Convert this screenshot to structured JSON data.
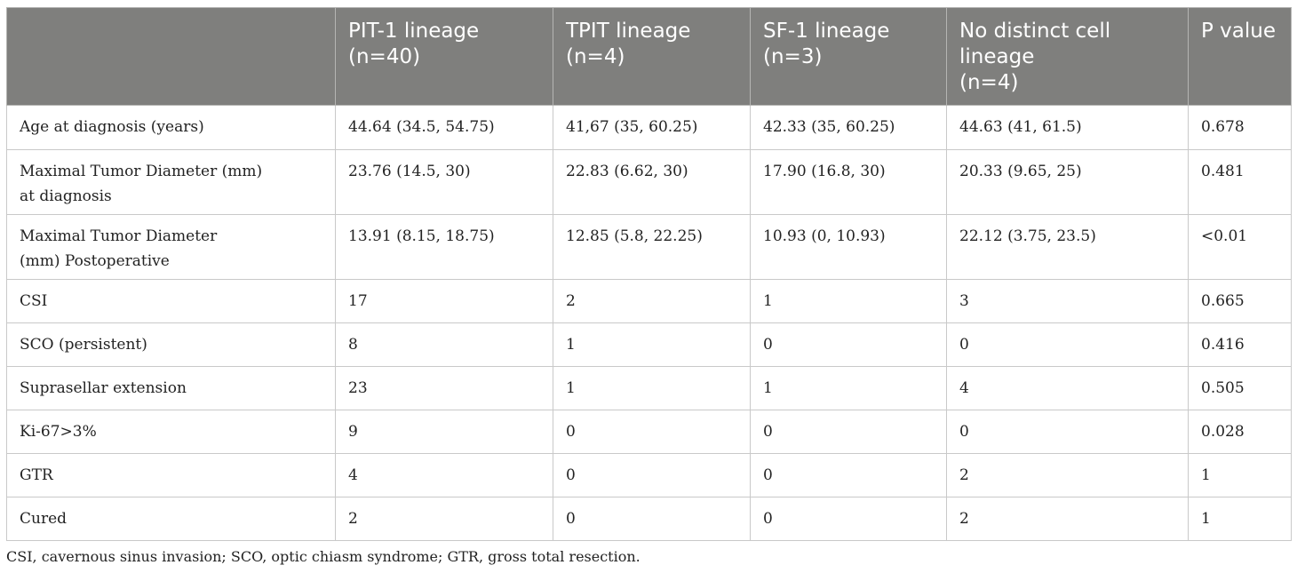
{
  "table": {
    "headers": [
      {
        "line1": "",
        "line2": "",
        "line3": ""
      },
      {
        "line1": "PIT-1 lineage",
        "line2": "(n=40)",
        "line3": ""
      },
      {
        "line1": "TPIT lineage",
        "line2": "(n=4)",
        "line3": ""
      },
      {
        "line1": "SF-1 lineage",
        "line2": "(n=3)",
        "line3": ""
      },
      {
        "line1": "No distinct cell",
        "line2": "lineage",
        "line3": "(n=4)"
      },
      {
        "line1": "P value",
        "line2": "",
        "line3": ""
      }
    ],
    "rows": [
      {
        "label1": "Age at diagnosis (years)",
        "label2": "",
        "pit1": "44.64 (34.5, 54.75)",
        "tpit": "41,67 (35, 60.25)",
        "sf1": "42.33 (35, 60.25)",
        "none": "44.63 (41, 61.5)",
        "p": "0.678"
      },
      {
        "label1": "Maximal Tumor Diameter (mm)",
        "label2": "at diagnosis",
        "pit1": "23.76 (14.5, 30)",
        "tpit": "22.83 (6.62, 30)",
        "sf1": "17.90 (16.8, 30)",
        "none": "20.33 (9.65, 25)",
        "p": "0.481"
      },
      {
        "label1": "Maximal Tumor Diameter",
        "label2": "(mm) Postoperative",
        "pit1": "13.91 (8.15, 18.75)",
        "tpit": "12.85 (5.8, 22.25)",
        "sf1": "10.93 (0, 10.93)",
        "none": "22.12 (3.75, 23.5)",
        "p": "<0.01"
      },
      {
        "label1": "CSI",
        "label2": "",
        "pit1": "17",
        "tpit": "2",
        "sf1": "1",
        "none": "3",
        "p": "0.665"
      },
      {
        "label1": "SCO (persistent)",
        "label2": "",
        "pit1": "8",
        "tpit": "1",
        "sf1": "0",
        "none": "0",
        "p": "0.416"
      },
      {
        "label1": "Suprasellar extension",
        "label2": "",
        "pit1": "23",
        "tpit": "1",
        "sf1": "1",
        "none": "4",
        "p": "0.505"
      },
      {
        "label1": "Ki-67>3%",
        "label2": "",
        "pit1": "9",
        "tpit": "0",
        "sf1": "0",
        "none": "0",
        "p": "0.028"
      },
      {
        "label1": "GTR",
        "label2": "",
        "pit1": "4",
        "tpit": "0",
        "sf1": "0",
        "none": "2",
        "p": "1"
      },
      {
        "label1": "Cured",
        "label2": "",
        "pit1": "2",
        "tpit": "0",
        "sf1": "0",
        "none": "2",
        "p": "1"
      }
    ]
  },
  "footnote": "CSI, cavernous sinus invasion; SCO, optic chiasm syndrome; GTR, gross total resection.",
  "colors": {
    "header_bg": "#7f7f7d",
    "header_text": "#ffffff",
    "border": "#c9c9c9",
    "body_text": "#222222"
  }
}
